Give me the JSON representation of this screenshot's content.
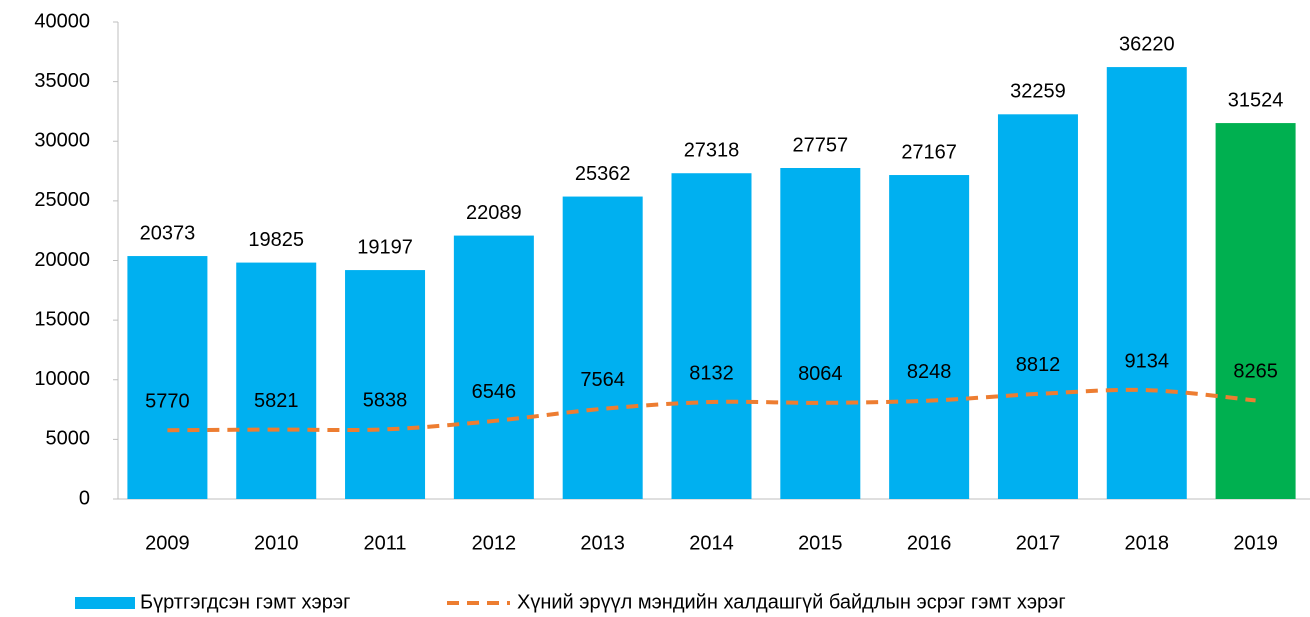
{
  "chart_data": {
    "type": "bar",
    "categories": [
      "2009",
      "2010",
      "2011",
      "2012",
      "2013",
      "2014",
      "2015",
      "2016",
      "2017",
      "2018",
      "2019"
    ],
    "series": [
      {
        "name": "Бүртгэгдсэн гэмт хэрэг",
        "type": "bar",
        "color": "#00B0F0",
        "colors": [
          "#00B0F0",
          "#00B0F0",
          "#00B0F0",
          "#00B0F0",
          "#00B0F0",
          "#00B0F0",
          "#00B0F0",
          "#00B0F0",
          "#00B0F0",
          "#00B0F0",
          "#00B050"
        ],
        "values": [
          20373,
          19825,
          19197,
          22089,
          25362,
          27318,
          27757,
          27167,
          32259,
          36220,
          31524
        ]
      },
      {
        "name": "Хүний эрүүл мэндийн халдашгүй байдлын эсрэг гэмт хэрэг",
        "type": "line",
        "dashed": true,
        "smooth": true,
        "color": "#ED7D31",
        "values": [
          5770,
          5821,
          5838,
          6546,
          7564,
          8132,
          8064,
          8248,
          8812,
          9134,
          8265
        ]
      }
    ],
    "ylim": [
      0,
      40000
    ],
    "yticks": [
      0,
      5000,
      10000,
      15000,
      20000,
      25000,
      30000,
      35000,
      40000
    ],
    "grid": false,
    "legend": "bottom"
  }
}
